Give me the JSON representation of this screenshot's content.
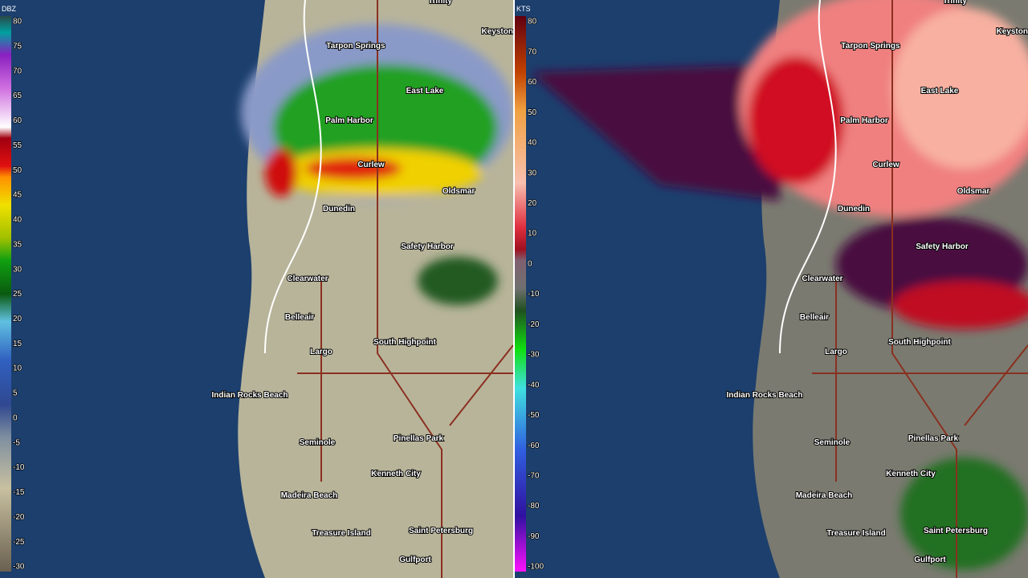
{
  "panels": [
    {
      "unit": "DBZ",
      "scale": [
        "80",
        "75",
        "70",
        "65",
        "60",
        "55",
        "50",
        "45",
        "40",
        "35",
        "30",
        "25",
        "20",
        "15",
        "10",
        "5",
        "0",
        "-5",
        "-10",
        "-15",
        "-20",
        "-25",
        "-30"
      ]
    },
    {
      "unit": "KTS",
      "scale": [
        "80",
        "70",
        "60",
        "50",
        "40",
        "30",
        "20",
        "10",
        "0",
        "-10",
        "-20",
        "-30",
        "-40",
        "-50",
        "-60",
        "-70",
        "-80",
        "-90",
        "-100"
      ]
    }
  ],
  "places": [
    "Trinity",
    "Keystone",
    "Tarpon Springs",
    "East Lake",
    "Palm Harbor",
    "Curlew",
    "Oldsmar",
    "Dunedin",
    "Safety Harbor",
    "Clearwater",
    "Belleair",
    "Largo",
    "South Highpoint",
    "Indian Rocks Beach",
    "Seminole",
    "Pinellas Park",
    "Kenneth City",
    "Madeira Beach",
    "Treasure Island",
    "Saint Petersburg",
    "Gulfport"
  ]
}
